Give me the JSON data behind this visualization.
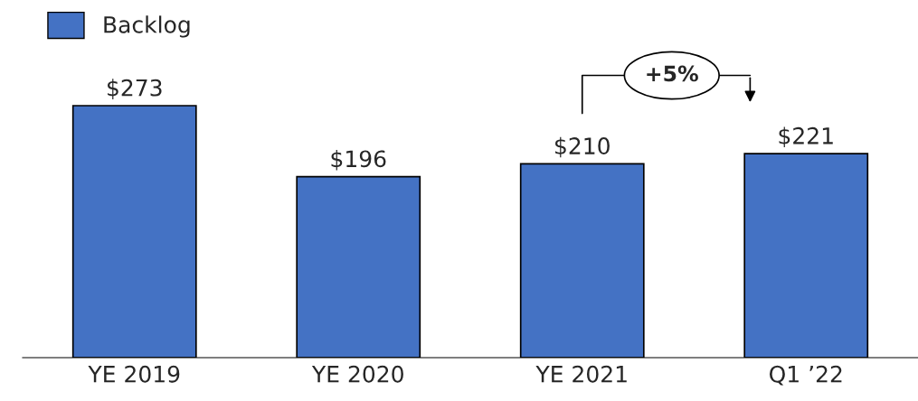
{
  "chart_data": {
    "type": "bar",
    "categories": [
      "YE 2019",
      "YE 2020",
      "YE 2021",
      "Q1 ’22"
    ],
    "series": [
      {
        "name": "Backlog",
        "color": "#4472c4",
        "values": [
          273,
          196,
          210,
          221
        ],
        "value_labels": [
          "$273",
          "$196",
          "$210",
          "$221"
        ]
      }
    ],
    "annotations": [
      "+5%"
    ],
    "legend": "top left",
    "grid": false
  }
}
